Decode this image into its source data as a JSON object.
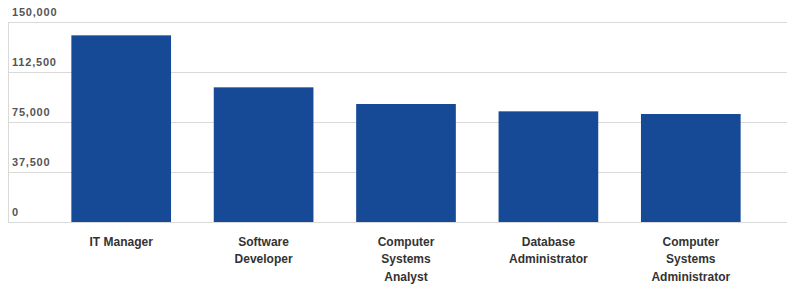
{
  "chart_data": {
    "type": "bar",
    "categories": [
      "IT Manager",
      "Software Developer",
      "Computer Systems Analyst",
      "Database Administrator",
      "Computer Systems Administrator"
    ],
    "values": [
      140000,
      101000,
      88500,
      83000,
      81000
    ],
    "color": "#174a96",
    "ylim": [
      0,
      150000
    ],
    "yticks": [
      0,
      {
        "value": 37500,
        "label": "37,500"
      },
      {
        "value": 75000,
        "label": "75,000"
      },
      {
        "value": 112500,
        "label": "112,500"
      },
      {
        "value": 150000,
        "label": "150,000"
      }
    ],
    "grid": true
  }
}
